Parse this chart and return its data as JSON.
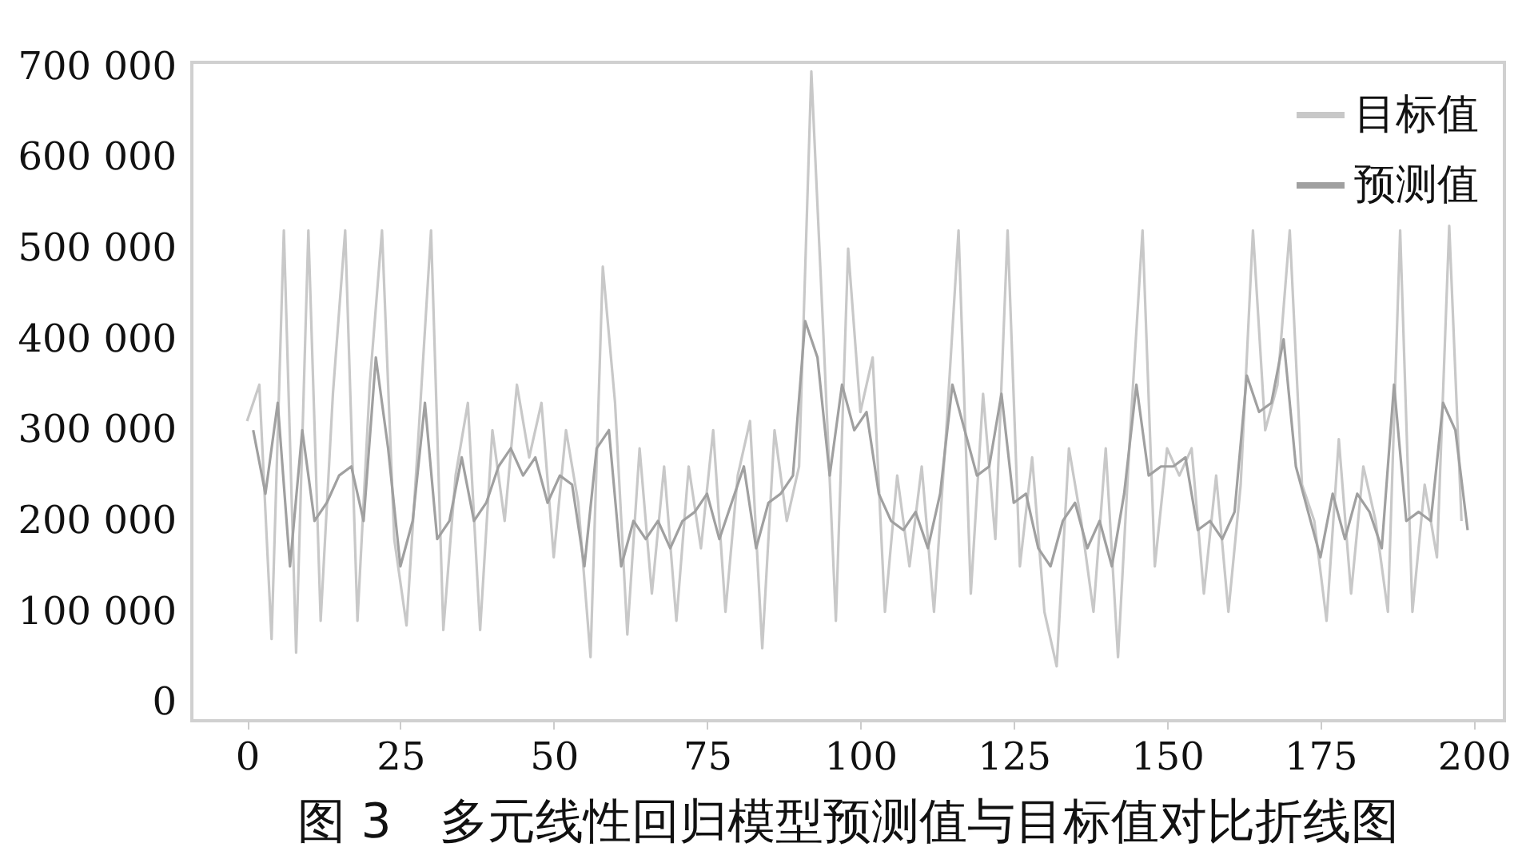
{
  "chart_data": {
    "type": "line",
    "title": "图 3　多元线性回归模型预测值与目标值对比折线图",
    "xlim": [
      -9,
      205
    ],
    "xticks": [
      0,
      25,
      50,
      75,
      100,
      125,
      150,
      175,
      200
    ],
    "ylim": [
      -20000,
      705000
    ],
    "yticks": [
      0,
      {
        "value": 100000,
        "label": "100 000"
      },
      {
        "value": 200000,
        "label": "200 000"
      },
      {
        "value": 300000,
        "label": "300 000"
      },
      {
        "value": 400000,
        "label": "400 000"
      },
      {
        "value": 500000,
        "label": "500 000"
      },
      {
        "value": 600000,
        "label": "600 000"
      },
      {
        "value": 700000,
        "label": "700 000"
      }
    ],
    "grid": false,
    "legend": "top right",
    "marker": "none",
    "line_style": "solid",
    "series": [
      {
        "name": "目标值",
        "color": "#c8c8c8",
        "x": [
          0,
          2,
          4,
          6,
          8,
          10,
          12,
          14,
          16,
          18,
          20,
          22,
          24,
          26,
          28,
          30,
          32,
          34,
          36,
          38,
          40,
          42,
          44,
          46,
          48,
          50,
          52,
          54,
          56,
          58,
          60,
          62,
          64,
          66,
          68,
          70,
          72,
          74,
          76,
          78,
          80,
          82,
          84,
          86,
          88,
          90,
          92,
          94,
          96,
          98,
          100,
          102,
          104,
          106,
          108,
          110,
          112,
          114,
          116,
          118,
          120,
          122,
          124,
          126,
          128,
          130,
          132,
          134,
          136,
          138,
          140,
          142,
          144,
          146,
          148,
          150,
          152,
          154,
          156,
          158,
          160,
          162,
          164,
          166,
          168,
          170,
          172,
          174,
          176,
          178,
          180,
          182,
          184,
          186,
          188,
          190,
          192,
          194,
          196,
          198
        ],
        "values": [
          310000,
          350000,
          70000,
          520000,
          55000,
          520000,
          90000,
          340000,
          520000,
          90000,
          350000,
          520000,
          180000,
          85000,
          300000,
          520000,
          80000,
          250000,
          330000,
          80000,
          300000,
          200000,
          350000,
          270000,
          330000,
          160000,
          300000,
          220000,
          50000,
          480000,
          330000,
          75000,
          280000,
          120000,
          260000,
          90000,
          260000,
          170000,
          300000,
          100000,
          250000,
          310000,
          60000,
          300000,
          200000,
          260000,
          695000,
          400000,
          90000,
          500000,
          320000,
          380000,
          100000,
          250000,
          150000,
          260000,
          100000,
          300000,
          520000,
          120000,
          340000,
          180000,
          520000,
          150000,
          270000,
          100000,
          40000,
          280000,
          200000,
          100000,
          280000,
          50000,
          300000,
          520000,
          150000,
          280000,
          250000,
          280000,
          120000,
          250000,
          100000,
          240000,
          520000,
          300000,
          350000,
          520000,
          240000,
          200000,
          90000,
          290000,
          120000,
          260000,
          200000,
          100000,
          520000,
          100000,
          240000,
          160000,
          525000,
          200000
        ]
      },
      {
        "name": "预测值",
        "color": "#a0a0a0",
        "x": [
          1,
          3,
          5,
          7,
          9,
          11,
          13,
          15,
          17,
          19,
          21,
          23,
          25,
          27,
          29,
          31,
          33,
          35,
          37,
          39,
          41,
          43,
          45,
          47,
          49,
          51,
          53,
          55,
          57,
          59,
          61,
          63,
          65,
          67,
          69,
          71,
          73,
          75,
          77,
          79,
          81,
          83,
          85,
          87,
          89,
          91,
          93,
          95,
          97,
          99,
          101,
          103,
          105,
          107,
          109,
          111,
          113,
          115,
          117,
          119,
          121,
          123,
          125,
          127,
          129,
          131,
          133,
          135,
          137,
          139,
          141,
          143,
          145,
          147,
          149,
          151,
          153,
          155,
          157,
          159,
          161,
          163,
          165,
          167,
          169,
          171,
          173,
          175,
          177,
          179,
          181,
          183,
          185,
          187,
          189,
          191,
          193,
          195,
          197,
          199
        ],
        "values": [
          300000,
          230000,
          330000,
          150000,
          300000,
          200000,
          220000,
          250000,
          260000,
          200000,
          380000,
          280000,
          150000,
          200000,
          330000,
          180000,
          200000,
          270000,
          200000,
          220000,
          260000,
          280000,
          250000,
          270000,
          220000,
          250000,
          240000,
          150000,
          280000,
          300000,
          150000,
          200000,
          180000,
          200000,
          170000,
          200000,
          210000,
          230000,
          180000,
          220000,
          260000,
          170000,
          220000,
          230000,
          250000,
          420000,
          380000,
          250000,
          350000,
          300000,
          320000,
          230000,
          200000,
          190000,
          210000,
          170000,
          230000,
          350000,
          300000,
          250000,
          260000,
          340000,
          220000,
          230000,
          170000,
          150000,
          200000,
          220000,
          170000,
          200000,
          150000,
          230000,
          350000,
          250000,
          260000,
          260000,
          270000,
          190000,
          200000,
          180000,
          210000,
          360000,
          320000,
          330000,
          400000,
          260000,
          210000,
          160000,
          230000,
          180000,
          230000,
          210000,
          170000,
          350000,
          200000,
          210000,
          200000,
          330000,
          300000,
          190000
        ]
      }
    ]
  }
}
